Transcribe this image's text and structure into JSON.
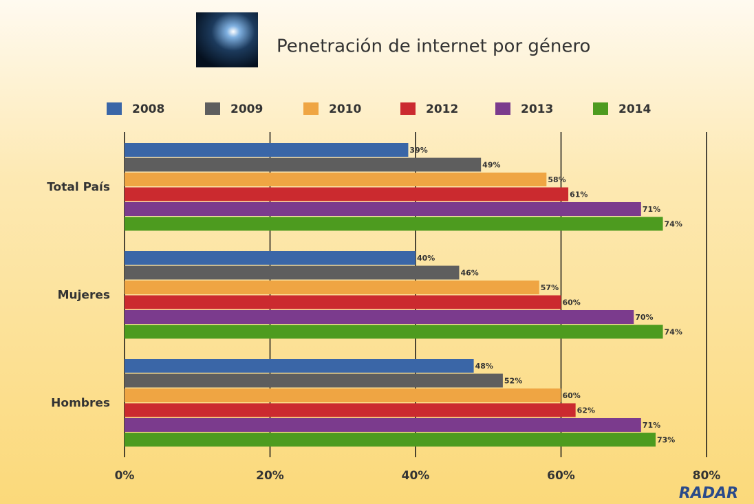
{
  "chart_data": {
    "type": "hbar",
    "title": "Penetración de internet por género",
    "categories": [
      "Total País",
      "Mujeres",
      "Hombres"
    ],
    "series": [
      {
        "name": "2008",
        "color": "#3a66a7",
        "values": [
          39,
          40,
          48
        ],
        "value_labels": [
          "39%",
          "40%",
          "48%"
        ]
      },
      {
        "name": "2009",
        "color": "#5e5e5e",
        "values": [
          49,
          46,
          52
        ],
        "value_labels": [
          "49%",
          "46%",
          "52%"
        ]
      },
      {
        "name": "2010",
        "color": "#efa543",
        "values": [
          58,
          57,
          60
        ],
        "value_labels": [
          "58%",
          "57%",
          "60%"
        ]
      },
      {
        "name": "2012",
        "color": "#cb2a2f",
        "values": [
          61,
          60,
          62
        ],
        "value_labels": [
          "61%",
          "60%",
          "62%"
        ]
      },
      {
        "name": "2013",
        "color": "#7b3b8d",
        "values": [
          71,
          70,
          71
        ],
        "value_labels": [
          "71%",
          "70%",
          "71%"
        ]
      },
      {
        "name": "2014",
        "color": "#4d9b1f",
        "values": [
          74,
          74,
          73
        ],
        "value_labels": [
          "74%",
          "74%",
          "73%"
        ]
      }
    ],
    "xlim": [
      0,
      80
    ],
    "xticks": [
      {
        "value": 0,
        "label": "0%"
      },
      {
        "value": 20,
        "label": "20%"
      },
      {
        "value": 40,
        "label": "40%"
      },
      {
        "value": 60,
        "label": "60%"
      },
      {
        "value": 80,
        "label": "80%"
      }
    ],
    "grid": true,
    "legend": "top"
  },
  "branding": "RADAR"
}
